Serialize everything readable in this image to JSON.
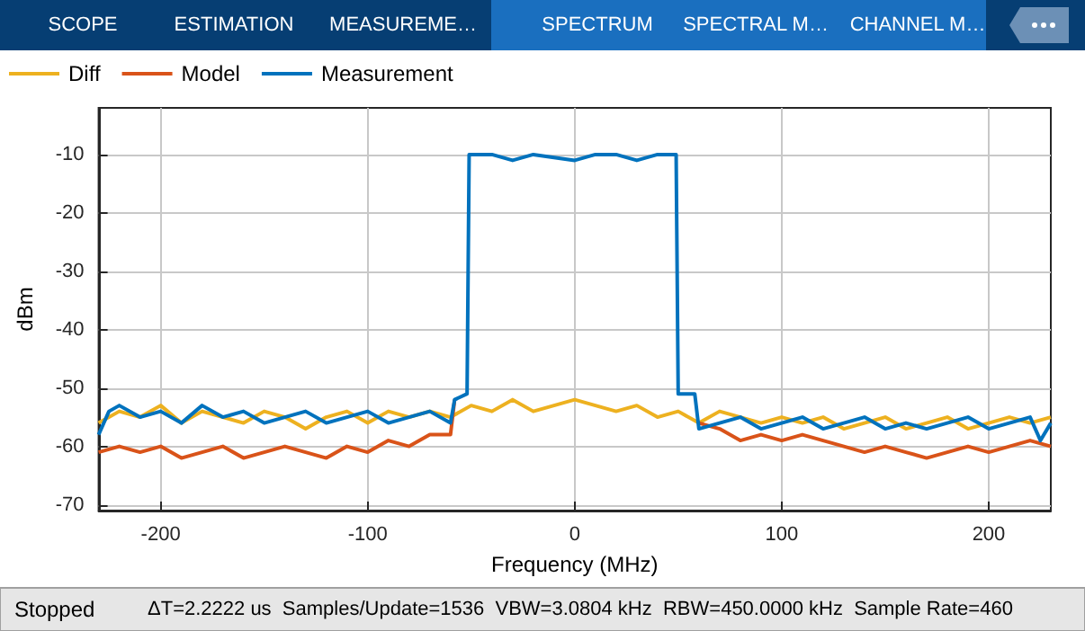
{
  "chart_data": {
    "type": "line",
    "xlabel": "Frequency (MHz)",
    "ylabel": "dBm",
    "xlim": [
      -230,
      230
    ],
    "ylim": [
      -71,
      -2
    ],
    "xticks": [
      -200,
      -100,
      0,
      100,
      200
    ],
    "yticks": [
      -70,
      -60,
      -50,
      -40,
      -30,
      -20,
      -10
    ],
    "grid": true,
    "legend": "top left",
    "marker": "none",
    "line_style": "solid",
    "annotations": [
      "SCOPE",
      "ESTIMATION",
      "MEASUREME…",
      "SPECTRUM",
      "SPECTRAL M…",
      "CHANNEL M…",
      "Stopped",
      "ΔT=2.2222 us  Samples/Update=1536  VBW=3.0804 kHz  RBW=450.0000 kHz  Sample Rate=460"
    ],
    "series": [
      {
        "name": "Diff",
        "color": "#edb120",
        "x": [
          -230,
          -220,
          -210,
          -200,
          -190,
          -180,
          -170,
          -160,
          -150,
          -140,
          -130,
          -120,
          -110,
          -100,
          -90,
          -80,
          -70,
          -60,
          -50,
          -40,
          -30,
          -20,
          -10,
          0,
          10,
          20,
          30,
          40,
          50,
          60,
          70,
          80,
          90,
          100,
          110,
          120,
          130,
          140,
          150,
          160,
          170,
          180,
          190,
          200,
          210,
          220,
          230
        ],
        "values": [
          -56,
          -54,
          -55,
          -53,
          -56,
          -54,
          -55,
          -56,
          -54,
          -55,
          -57,
          -55,
          -54,
          -56,
          -54,
          -55,
          -54,
          -55,
          -53,
          -54,
          -52,
          -54,
          -53,
          -52,
          -53,
          -54,
          -53,
          -55,
          -54,
          -56,
          -54,
          -55,
          -56,
          -55,
          -56,
          -55,
          -57,
          -56,
          -55,
          -57,
          -56,
          -55,
          -57,
          -56,
          -55,
          -56,
          -55
        ]
      },
      {
        "name": "Model",
        "color": "#d95319",
        "x": [
          -230,
          -220,
          -210,
          -200,
          -190,
          -180,
          -170,
          -160,
          -150,
          -140,
          -130,
          -120,
          -110,
          -100,
          -90,
          -80,
          -70,
          -60,
          -58,
          -52,
          0,
          60,
          70,
          80,
          90,
          100,
          110,
          120,
          130,
          140,
          150,
          160,
          170,
          180,
          190,
          200,
          210,
          220,
          230
        ],
        "values": [
          -61,
          -60,
          -61,
          -60,
          -62,
          -61,
          -60,
          -62,
          -61,
          -60,
          -61,
          -62,
          -60,
          -61,
          -59,
          -60,
          -58,
          -58,
          -52,
          null,
          null,
          -56,
          -57,
          -59,
          -58,
          -59,
          -58,
          -59,
          -60,
          -61,
          -60,
          -61,
          -62,
          -61,
          -60,
          -61,
          -60,
          -59,
          -60
        ]
      },
      {
        "name": "Measurement",
        "color": "#0072bd",
        "x": [
          -230,
          -225,
          -220,
          -210,
          -200,
          -190,
          -180,
          -170,
          -160,
          -150,
          -140,
          -130,
          -120,
          -110,
          -100,
          -90,
          -80,
          -70,
          -60,
          -58,
          -52,
          -51,
          -40,
          -30,
          -20,
          -10,
          0,
          10,
          20,
          30,
          40,
          49,
          50,
          58,
          60,
          70,
          80,
          90,
          100,
          110,
          120,
          130,
          140,
          150,
          160,
          170,
          180,
          190,
          200,
          210,
          220,
          225,
          230
        ],
        "values": [
          -58,
          -54,
          -53,
          -55,
          -54,
          -56,
          -53,
          -55,
          -54,
          -56,
          -55,
          -54,
          -56,
          -55,
          -54,
          -56,
          -55,
          -54,
          -56,
          -52,
          -51,
          -10,
          -10,
          -11,
          -10,
          -10.5,
          -11,
          -10,
          -10,
          -11,
          -10,
          -10,
          -51,
          -51,
          -57,
          -56,
          -55,
          -57,
          -56,
          -55,
          -57,
          -56,
          -55,
          -57,
          -56,
          -57,
          -56,
          -55,
          -57,
          -56,
          -55,
          -59,
          -56
        ]
      }
    ]
  }
}
